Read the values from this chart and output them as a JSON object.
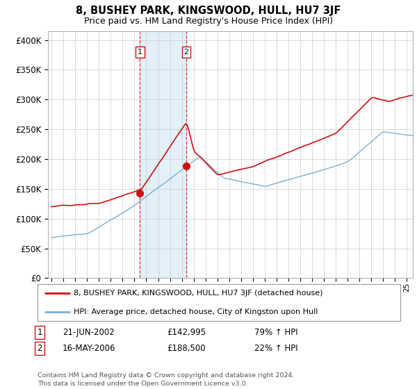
{
  "title": "8, BUSHEY PARK, KINGSWOOD, HULL, HU7 3JF",
  "subtitle": "Price paid vs. HM Land Registry's House Price Index (HPI)",
  "ylabel_ticks": [
    "£0",
    "£50K",
    "£100K",
    "£150K",
    "£200K",
    "£250K",
    "£300K",
    "£350K",
    "£400K"
  ],
  "ytick_vals": [
    0,
    50000,
    100000,
    150000,
    200000,
    250000,
    300000,
    350000,
    400000
  ],
  "ylim": [
    0,
    415000
  ],
  "xlim_start": 1994.7,
  "xlim_end": 2025.5,
  "sale1_x": 2002.47,
  "sale1_y": 142995,
  "sale2_x": 2006.37,
  "sale2_y": 188500,
  "vline1_x": 2002.47,
  "vline2_x": 2006.37,
  "vline_color": "#dd3333",
  "vline_shade_color": "#d8eaf8",
  "red_line_color": "#cc1111",
  "blue_line_color": "#7bafd4",
  "legend_red_label": "8, BUSHEY PARK, KINGSWOOD, HULL, HU7 3JF (detached house)",
  "legend_blue_label": "HPI: Average price, detached house, City of Kingston upon Hull",
  "table_row1": [
    "1",
    "21-JUN-2002",
    "£142,995",
    "79% ↑ HPI"
  ],
  "table_row2": [
    "2",
    "16-MAY-2006",
    "£188,500",
    "22% ↑ HPI"
  ],
  "footer": "Contains HM Land Registry data © Crown copyright and database right 2024.\nThis data is licensed under the Open Government Licence v3.0.",
  "background_color": "#ffffff",
  "grid_color": "#cccccc"
}
